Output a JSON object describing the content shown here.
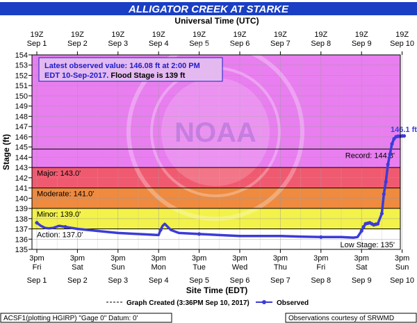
{
  "header": {
    "title": "ALLIGATOR CREEK AT STARKE"
  },
  "top_axis": {
    "label": "Universal Time (UTC)",
    "ticks": [
      {
        "t": "19Z",
        "d": "Sep 1"
      },
      {
        "t": "19Z",
        "d": "Sep 2"
      },
      {
        "t": "19Z",
        "d": "Sep 3"
      },
      {
        "t": "19Z",
        "d": "Sep 4"
      },
      {
        "t": "19Z",
        "d": "Sep 5"
      },
      {
        "t": "19Z",
        "d": "Sep 6"
      },
      {
        "t": "19Z",
        "d": "Sep 7"
      },
      {
        "t": "19Z",
        "d": "Sep 8"
      },
      {
        "t": "19Z",
        "d": "Sep 9"
      },
      {
        "t": "19Z",
        "d": "Sep 10"
      }
    ]
  },
  "bottom_axis": {
    "label": "Site Time (EDT)",
    "ticks": [
      {
        "t": "3pm",
        "w": "Fri",
        "d": "Sep 1"
      },
      {
        "t": "3pm",
        "w": "Sat",
        "d": "Sep 2"
      },
      {
        "t": "3pm",
        "w": "Sun",
        "d": "Sep 3"
      },
      {
        "t": "3pm",
        "w": "Mon",
        "d": "Sep 4"
      },
      {
        "t": "3pm",
        "w": "Tue",
        "d": "Sep 5"
      },
      {
        "t": "3pm",
        "w": "Wed",
        "d": "Sep 6"
      },
      {
        "t": "3pm",
        "w": "Thu",
        "d": "Sep 7"
      },
      {
        "t": "3pm",
        "w": "Fri",
        "d": "Sep 8"
      },
      {
        "t": "3pm",
        "w": "Sat",
        "d": "Sep 9"
      },
      {
        "t": "3pm",
        "w": "Sun",
        "d": "Sep 10"
      }
    ]
  },
  "info_box": {
    "line1": "Latest observed value: 146.08 ft at 2:00 PM",
    "line2_a": "EDT 10-Sep-2017.",
    "line2_b": " Flood Stage is 139 ft"
  },
  "watermark": {
    "text": "NOAA"
  },
  "thresholds": [
    {
      "label": "Record: 144.8'",
      "value": 144.8
    },
    {
      "label": "Major: 143.0'",
      "value": 143.0
    },
    {
      "label": "Moderate: 141.0'",
      "value": 141.0
    },
    {
      "label": "Minor: 139.0'",
      "value": 139.0
    },
    {
      "label": "Action: 137.0'",
      "value": 137.0
    },
    {
      "label": "Low Stage: 135'",
      "value": 135
    }
  ],
  "latest_label": "146.1 ft",
  "legend": {
    "created": "Graph Created (3:36PM Sep 10, 2017)",
    "observed": "Observed"
  },
  "footer": {
    "left": "ACSF1(plotting HGIRP) \"Gage 0\" Datum: 0'",
    "right": "Observations courtesy of SRWMD"
  },
  "colors": {
    "title_bg": "#1a3fc4",
    "record_zone": "#e97ef0",
    "major_zone": "#f05a70",
    "moderate_zone": "#ef8a3f",
    "minor_zone": "#f2f24a",
    "action_zone": "#fffdc4",
    "below_zone": "#ffffff",
    "series": "#3b3bd8",
    "info_bg": "#e3b9f0",
    "info_text": "#1c1cc8"
  },
  "chart_data": {
    "type": "line",
    "xlabel": "Site Time (EDT)",
    "ylabel": "Stage (ft)",
    "ylim": [
      135,
      154
    ],
    "x_unit": "days after 3pm EDT Sep 1, 2017",
    "xlim": [
      0,
      9.1
    ],
    "grid": true,
    "series": [
      {
        "name": "Observed",
        "x": [
          0,
          0.1,
          0.2,
          0.3,
          0.4,
          0.55,
          0.7,
          1.0,
          1.5,
          2.0,
          2.5,
          3.0,
          3.05,
          3.1,
          3.15,
          3.2,
          3.3,
          3.5,
          4.0,
          4.5,
          5.0,
          5.5,
          6.0,
          6.5,
          7.0,
          7.5,
          7.8,
          7.9,
          8.0,
          8.05,
          8.1,
          8.15,
          8.2,
          8.25,
          8.3,
          8.35,
          8.4,
          8.5,
          8.55,
          8.6,
          8.65,
          8.7,
          8.75,
          8.8,
          8.85,
          8.9,
          8.95,
          9.0,
          9.05
        ],
        "y": [
          137.6,
          137.3,
          137.1,
          137.05,
          137.1,
          137.3,
          137.2,
          137.0,
          136.8,
          136.6,
          136.5,
          136.4,
          136.9,
          137.3,
          137.5,
          137.3,
          136.9,
          136.6,
          136.5,
          136.4,
          136.3,
          136.3,
          136.3,
          136.25,
          136.2,
          136.2,
          136.15,
          136.2,
          136.8,
          137.2,
          137.5,
          137.55,
          137.6,
          137.5,
          137.4,
          137.45,
          137.5,
          138.5,
          140.4,
          141.6,
          143.3,
          144.3,
          145.3,
          145.8,
          146.0,
          146.05,
          146.05,
          146.08,
          146.08
        ]
      }
    ],
    "annotations": [
      "146.1 ft"
    ]
  }
}
